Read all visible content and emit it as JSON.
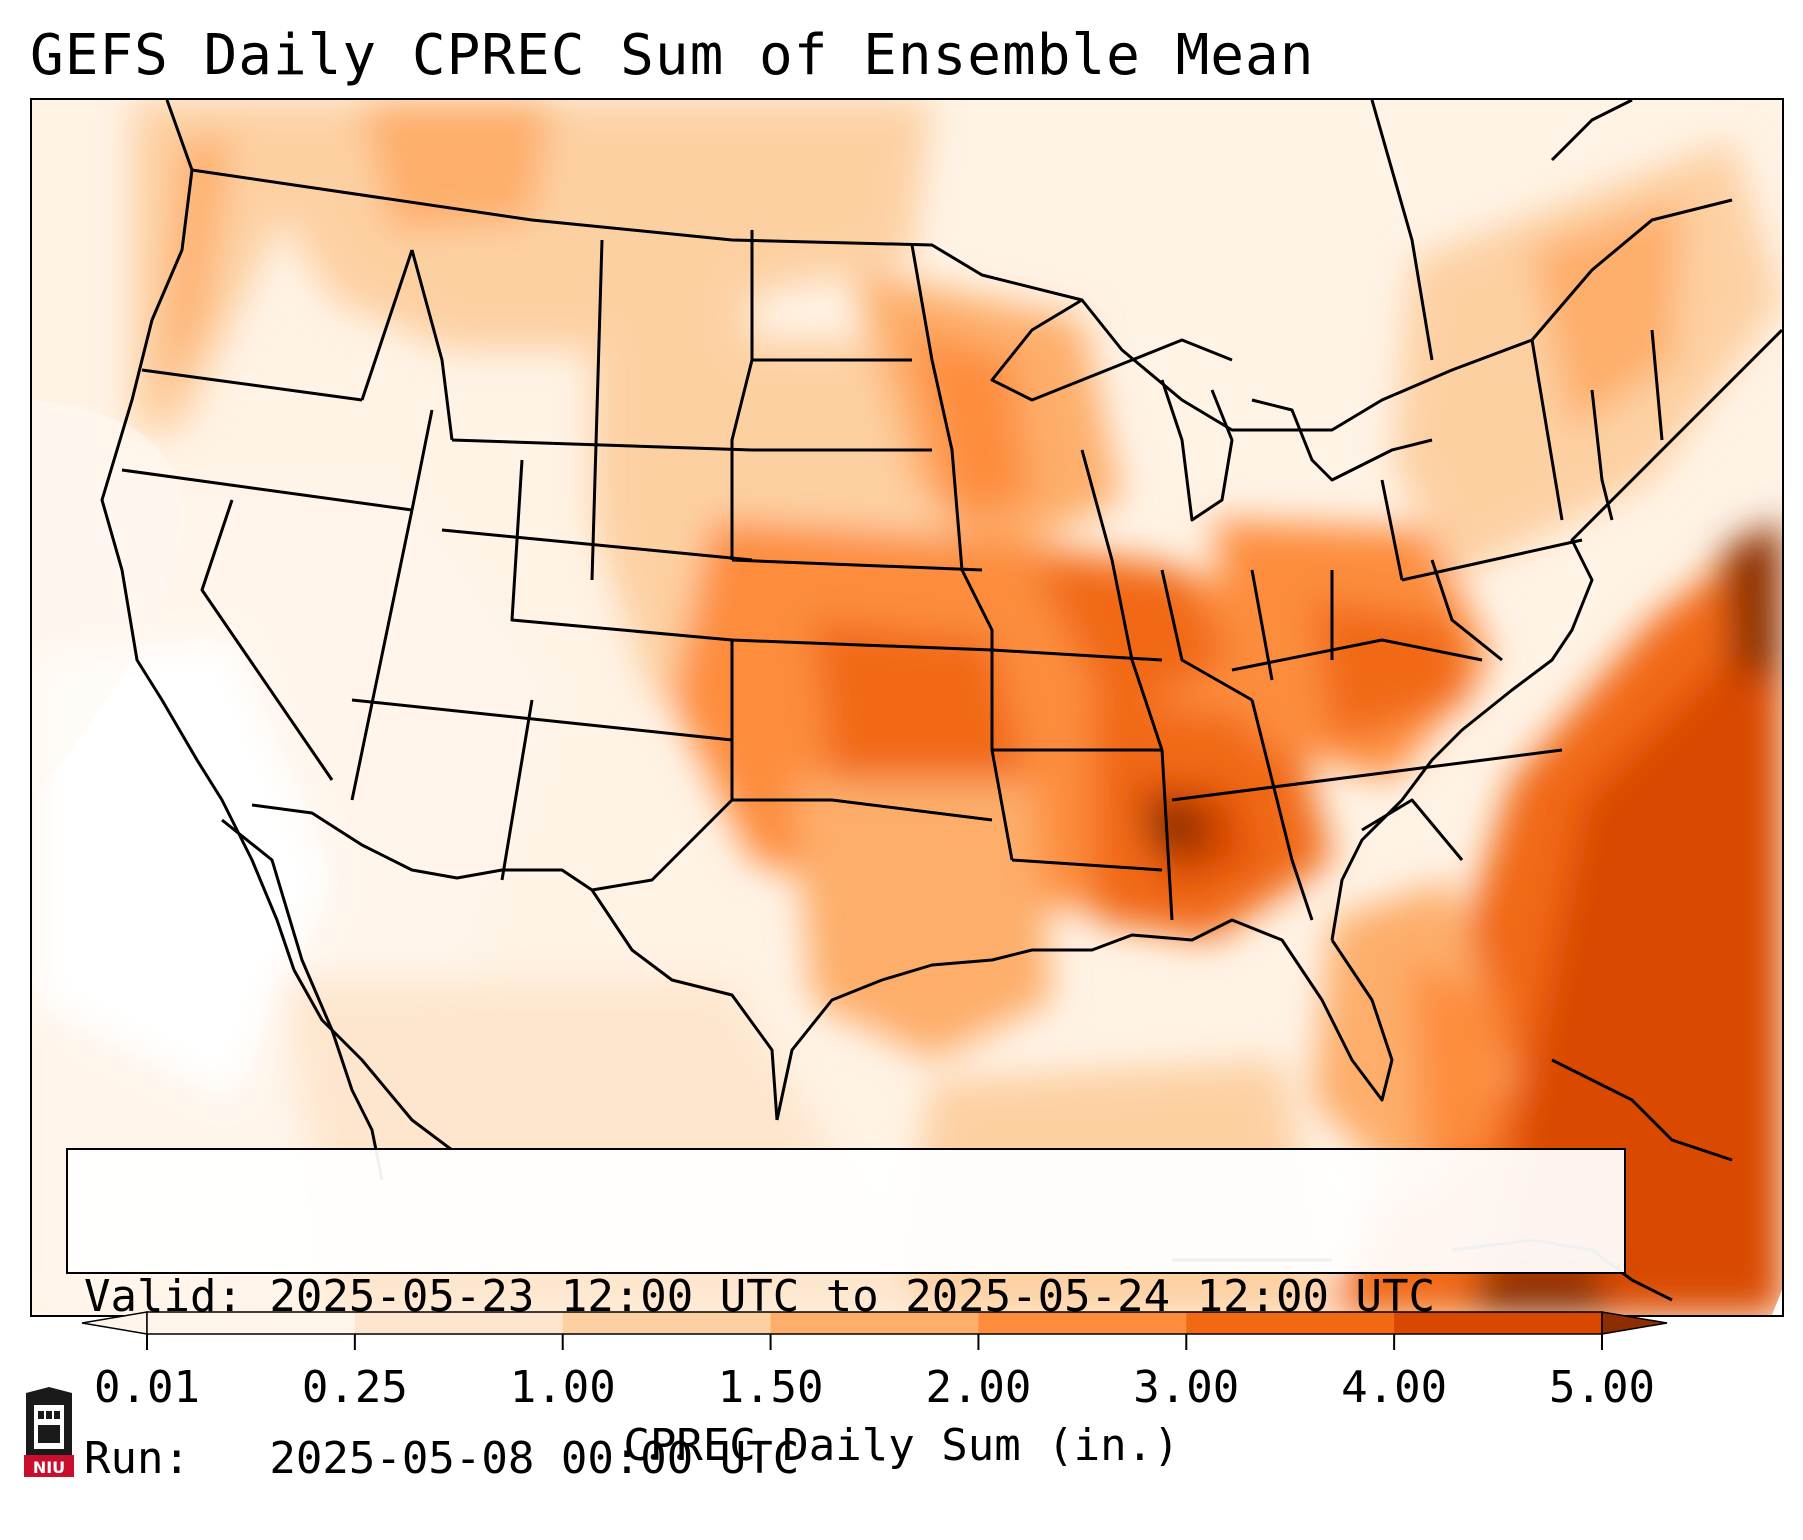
{
  "title": "GEFS Daily CPREC Sum of Ensemble Mean",
  "info": {
    "valid_line": "Valid: 2025-05-23 12:00 UTC to 2025-05-24 12:00 UTC",
    "run_line": "Run:   2025-05-08 00:00 UTC"
  },
  "colorbar": {
    "label": "CPREC Daily Sum (in.)",
    "ticks": [
      "0.01",
      "0.25",
      "1.00",
      "1.50",
      "2.00",
      "3.00",
      "4.00",
      "5.00"
    ],
    "colors": [
      "#fff5eb",
      "#fee6ce",
      "#fdd0a2",
      "#fdae6b",
      "#fd8d3c",
      "#f16913",
      "#d94801",
      "#8c2d04"
    ],
    "extend": "both"
  },
  "logo": {
    "text": "NIU",
    "icon": "niu-tower-logo-icon",
    "color": "#c8102e"
  }
}
